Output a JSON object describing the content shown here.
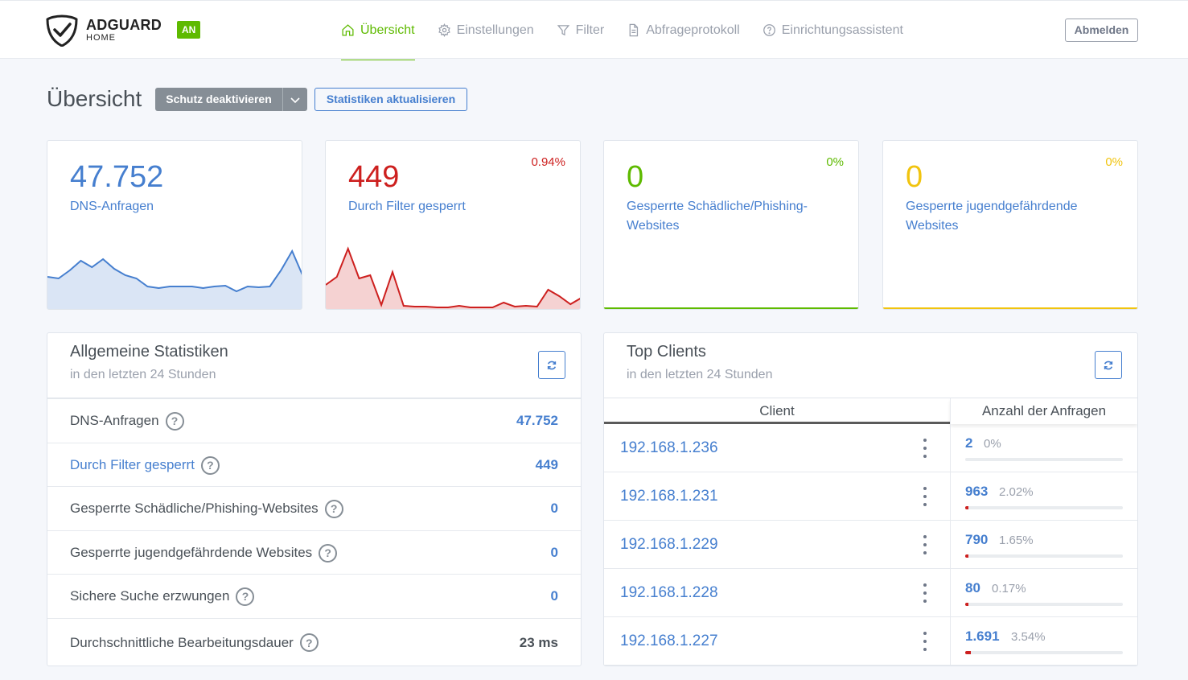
{
  "header": {
    "brand_main": "ADGUARD",
    "brand_sub": "HOME",
    "status_badge": "AN",
    "nav": [
      {
        "label": "Übersicht",
        "icon": "home-icon",
        "active": true
      },
      {
        "label": "Einstellungen",
        "icon": "gear-icon",
        "active": false
      },
      {
        "label": "Filter",
        "icon": "filter-icon",
        "active": false
      },
      {
        "label": "Abfrageprotokoll",
        "icon": "document-icon",
        "active": false
      },
      {
        "label": "Einrichtungsassistent",
        "icon": "help-circle-icon",
        "active": false
      }
    ],
    "logout_label": "Abmelden"
  },
  "page": {
    "title": "Übersicht",
    "protect_button": "Schutz deaktivieren",
    "refresh_stats_button": "Statistiken aktualisieren"
  },
  "stat_cards": [
    {
      "value": "47.752",
      "label": "DNS-Anfragen",
      "percent": "",
      "color": "#467fcf",
      "sparkline": [
        40,
        38,
        48,
        60,
        52,
        62,
        50,
        42,
        38,
        28,
        26,
        28,
        28,
        28,
        26,
        28,
        29,
        22,
        28,
        27,
        28,
        48,
        72,
        40
      ]
    },
    {
      "value": "449",
      "label": "Durch Filter gesperrt",
      "percent": "0.94%",
      "color": "#cd201f",
      "sparkline": [
        30,
        40,
        75,
        38,
        42,
        5,
        46,
        4,
        3,
        3,
        2,
        2,
        4,
        2,
        2,
        2,
        8,
        3,
        4,
        3,
        24,
        16,
        6,
        14
      ]
    },
    {
      "value": "0",
      "label": "Gesperrte Schädliche/Phishing-Websites",
      "percent": "0%",
      "color": "#5eba00",
      "sparkline": []
    },
    {
      "value": "0",
      "label": "Gesperrte jugendgefährdende Websites",
      "percent": "0%",
      "color": "#f1c40f",
      "sparkline": []
    }
  ],
  "general_stats": {
    "title": "Allgemeine Statistiken",
    "subtitle": "in den letzten 24 Stunden",
    "rows": [
      {
        "label": "DNS-Anfragen",
        "value": "47.752"
      },
      {
        "label": "Durch Filter gesperrt",
        "value": "449"
      },
      {
        "label": "Gesperrte Schädliche/Phishing-Websites",
        "value": "0"
      },
      {
        "label": "Gesperrte jugendgefährdende Websites",
        "value": "0"
      },
      {
        "label": "Sichere Suche erzwungen",
        "value": "0"
      },
      {
        "label": "Durchschnittliche Bearbeitungsdauer",
        "value": "23 ms"
      }
    ],
    "help_glyph": "?"
  },
  "top_clients": {
    "title": "Top Clients",
    "subtitle": "in den letzten 24 Stunden",
    "col_client": "Client",
    "col_count": "Anzahl der Anfragen",
    "rows": [
      {
        "client": "192.168.1.236",
        "count": "2",
        "percent": "0%",
        "fraction": 0.0
      },
      {
        "client": "192.168.1.231",
        "count": "963",
        "percent": "2.02%",
        "fraction": 0.0202
      },
      {
        "client": "192.168.1.229",
        "count": "790",
        "percent": "1.65%",
        "fraction": 0.0165
      },
      {
        "client": "192.168.1.228",
        "count": "80",
        "percent": "0.17%",
        "fraction": 0.0017
      },
      {
        "client": "192.168.1.227",
        "count": "1.691",
        "percent": "3.54%",
        "fraction": 0.0354
      }
    ]
  },
  "colors": {
    "accent": "#467fcf",
    "success": "#5eba00",
    "danger": "#cd201f",
    "warning": "#f1c40f"
  }
}
